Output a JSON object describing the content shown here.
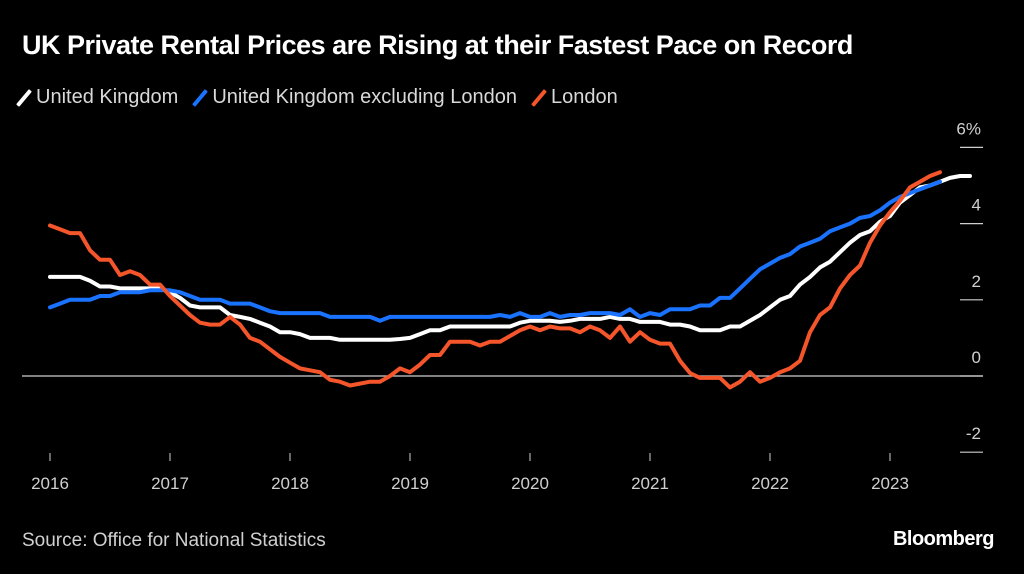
{
  "chart_data": {
    "type": "line",
    "title": "UK Private Rental Prices are Rising at their Fastest Pace on Record",
    "xlabel": "",
    "ylabel": "",
    "y_unit": "%",
    "ylim": [
      -2,
      6
    ],
    "yticks": [
      6,
      4,
      2,
      0,
      -2
    ],
    "ytick_labels": [
      "6%",
      "4",
      "2",
      "0",
      "-2"
    ],
    "xticks": [
      "2016",
      "2017",
      "2018",
      "2019",
      "2020",
      "2021",
      "2022",
      "2023"
    ],
    "x_start": "2016-01",
    "x_frequency": "monthly",
    "grid": false,
    "zero_line": true,
    "legend_position": "top-left",
    "series": [
      {
        "name": "United Kingdom",
        "color": "#ffffff",
        "values": [
          2.6,
          2.6,
          2.6,
          2.6,
          2.5,
          2.35,
          2.35,
          2.3,
          2.3,
          2.3,
          2.3,
          2.3,
          2.2,
          2.05,
          1.85,
          1.8,
          1.8,
          1.8,
          1.6,
          1.55,
          1.5,
          1.4,
          1.3,
          1.15,
          1.15,
          1.1,
          1.0,
          1.0,
          1.0,
          0.95,
          0.95,
          0.95,
          0.95,
          0.95,
          0.95,
          0.97,
          1.0,
          1.1,
          1.2,
          1.2,
          1.3,
          1.3,
          1.3,
          1.3,
          1.3,
          1.3,
          1.3,
          1.4,
          1.45,
          1.45,
          1.45,
          1.42,
          1.45,
          1.5,
          1.5,
          1.5,
          1.55,
          1.5,
          1.5,
          1.42,
          1.42,
          1.42,
          1.35,
          1.35,
          1.3,
          1.2,
          1.2,
          1.2,
          1.3,
          1.3,
          1.45,
          1.6,
          1.8,
          2.0,
          2.1,
          2.4,
          2.6,
          2.85,
          3.0,
          3.25,
          3.5,
          3.7,
          3.8,
          4.05,
          4.2,
          4.55,
          4.75,
          4.95,
          5.0,
          5.1,
          5.2,
          5.25,
          5.25
        ]
      },
      {
        "name": "United Kingdom excluding London",
        "color": "#1a73ff",
        "values": [
          1.8,
          1.9,
          2.0,
          2.0,
          2.0,
          2.1,
          2.1,
          2.2,
          2.2,
          2.2,
          2.25,
          2.25,
          2.25,
          2.2,
          2.1,
          2.0,
          2.0,
          2.0,
          1.9,
          1.9,
          1.9,
          1.8,
          1.7,
          1.65,
          1.65,
          1.65,
          1.65,
          1.65,
          1.55,
          1.55,
          1.55,
          1.55,
          1.55,
          1.45,
          1.55,
          1.55,
          1.55,
          1.55,
          1.55,
          1.55,
          1.55,
          1.55,
          1.55,
          1.55,
          1.55,
          1.6,
          1.55,
          1.65,
          1.55,
          1.55,
          1.65,
          1.55,
          1.6,
          1.6,
          1.65,
          1.65,
          1.65,
          1.6,
          1.75,
          1.55,
          1.65,
          1.6,
          1.75,
          1.75,
          1.75,
          1.85,
          1.85,
          2.05,
          2.05,
          2.3,
          2.55,
          2.8,
          2.95,
          3.1,
          3.2,
          3.4,
          3.5,
          3.6,
          3.8,
          3.9,
          4.0,
          4.15,
          4.2,
          4.35,
          4.55,
          4.7,
          4.8,
          4.9,
          5.0,
          5.1
        ]
      },
      {
        "name": "London",
        "color": "#f4552a",
        "values": [
          3.95,
          3.85,
          3.75,
          3.75,
          3.3,
          3.05,
          3.05,
          2.65,
          2.75,
          2.65,
          2.4,
          2.4,
          2.1,
          1.85,
          1.6,
          1.4,
          1.35,
          1.35,
          1.55,
          1.35,
          1.0,
          0.9,
          0.7,
          0.5,
          0.35,
          0.2,
          0.15,
          0.1,
          -0.1,
          -0.15,
          -0.25,
          -0.2,
          -0.15,
          -0.15,
          0.0,
          0.2,
          0.1,
          0.3,
          0.55,
          0.55,
          0.9,
          0.9,
          0.9,
          0.8,
          0.9,
          0.9,
          1.05,
          1.2,
          1.3,
          1.2,
          1.3,
          1.25,
          1.25,
          1.15,
          1.3,
          1.2,
          1.0,
          1.3,
          0.9,
          1.15,
          0.95,
          0.85,
          0.85,
          0.4,
          0.08,
          -0.05,
          -0.05,
          -0.05,
          -0.3,
          -0.15,
          0.1,
          -0.15,
          -0.05,
          0.1,
          0.2,
          0.4,
          1.15,
          1.6,
          1.8,
          2.3,
          2.65,
          2.9,
          3.5,
          3.95,
          4.3,
          4.6,
          4.95,
          5.1,
          5.25,
          5.35
        ]
      }
    ]
  },
  "legend": [
    {
      "label": "United Kingdom",
      "color": "#ffffff"
    },
    {
      "label": "United Kingdom excluding London",
      "color": "#1a73ff"
    },
    {
      "label": "London",
      "color": "#f4552a"
    }
  ],
  "footer": {
    "source": "Source: Office for National Statistics",
    "brand": "Bloomberg"
  }
}
